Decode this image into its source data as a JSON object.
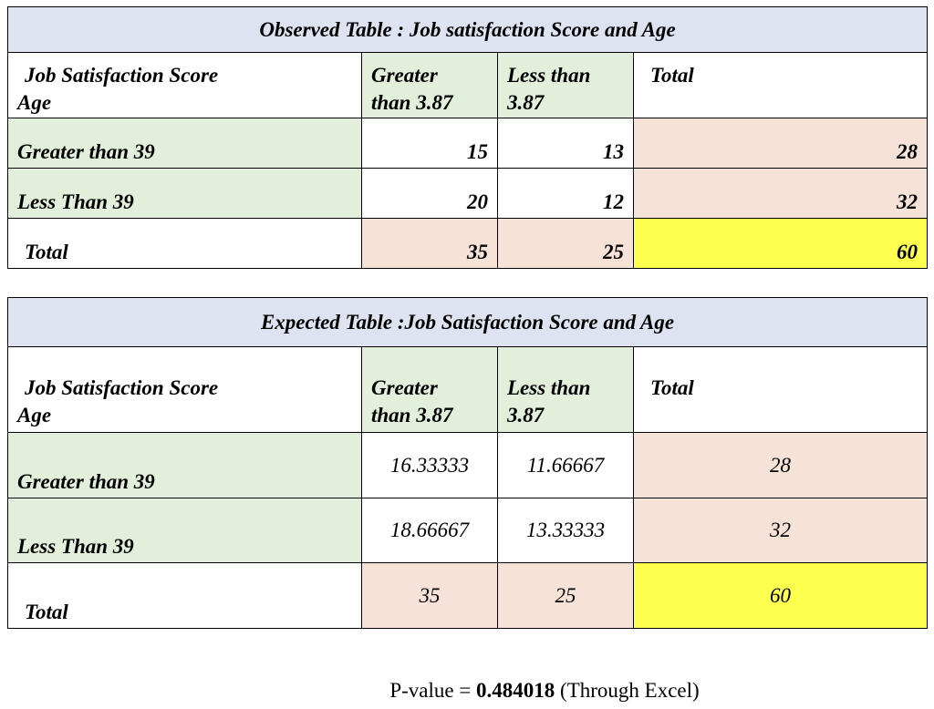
{
  "observed": {
    "title": "Observed Table : Job satisfaction Score and Age",
    "corner_line1": "Job Satisfaction Score",
    "corner_line2": "Age",
    "col1_line1": "Greater",
    "col1_line2": "than 3.87",
    "col2_line1": "Less than",
    "col2_line2": "3.87",
    "col3": "Total",
    "rows": [
      {
        "label": "Greater than 39",
        "v1": "15",
        "v2": "13",
        "total": "28"
      },
      {
        "label": "Less Than 39",
        "v1": "20",
        "v2": "12",
        "total": "32"
      },
      {
        "label": "Total",
        "v1": "35",
        "v2": "25",
        "total": "60"
      }
    ]
  },
  "expected": {
    "title": "Expected Table :Job Satisfaction Score and Age",
    "corner_line1": "Job Satisfaction Score",
    "corner_line2": "Age",
    "col1_line1": "Greater",
    "col1_line2": "than 3.87",
    "col2_line1": "Less than",
    "col2_line2": "3.87",
    "col3": "Total",
    "rows": [
      {
        "label": "Greater than 39",
        "v1": "16.33333",
        "v2": "11.66667",
        "total": "28"
      },
      {
        "label": "Less Than 39",
        "v1": "18.66667",
        "v2": "13.33333",
        "total": "32"
      },
      {
        "label": "Total",
        "v1": "35",
        "v2": "25",
        "total": "60"
      }
    ]
  },
  "pvalue": {
    "prefix": "P-value = ",
    "value": "0.484018",
    "suffix": " (Through Excel)"
  },
  "colors": {
    "title_bg": "#dde3f1",
    "green": "#e2efdb",
    "pink": "#f7e2d8",
    "yellow": "#ffff4f"
  }
}
